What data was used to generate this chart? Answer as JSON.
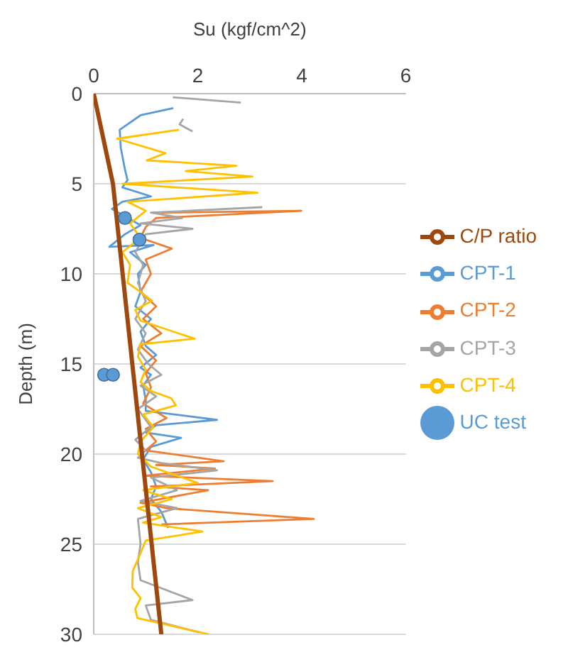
{
  "chart_data": {
    "type": "line",
    "xlabel": "Su (kgf/cm^2)",
    "ylabel": "Depth (m)",
    "xlim": [
      0,
      6
    ],
    "xticks": [
      0,
      2,
      4,
      6
    ],
    "ylim": [
      30,
      0
    ],
    "yticks": [
      0,
      5,
      10,
      15,
      20,
      25,
      30
    ],
    "grid": "y",
    "legend": "right",
    "series": [
      {
        "name": "CPT-1",
        "color": "#5b9bd5",
        "x": [
          1.53,
          0.9,
          0.5,
          0.52,
          0.6,
          0.65,
          0.55,
          1.1,
          0.55,
          0.35,
          0.6,
          0.9,
          0.6,
          0.3,
          1.15,
          0.7,
          1.0,
          0.85,
          0.9,
          0.8,
          1.1,
          0.9,
          1.0,
          1.2,
          0.9,
          1.1,
          0.95,
          1.0,
          1.0,
          2.37,
          1.2,
          1.0,
          1.68,
          1.1,
          0.95,
          1.1,
          1.2,
          1.1,
          1.3,
          1.43
        ],
        "values": [
          0.8,
          1.2,
          2.0,
          3.0,
          4.2,
          4.8,
          5.2,
          5.7,
          6.0,
          6.4,
          6.8,
          7.3,
          7.8,
          8.5,
          8.4,
          8.8,
          9.5,
          10,
          11,
          11.8,
          12.5,
          13.2,
          14,
          14.5,
          15.2,
          15.6,
          16.2,
          17,
          17.6,
          18.1,
          18.4,
          18.8,
          19.1,
          19.6,
          20.3,
          21,
          21.8,
          22.5,
          23.2,
          24.1
        ]
      },
      {
        "name": "CPT-2",
        "color": "#ed7d31",
        "x": [
          1.3,
          3.99,
          1.2,
          1.0,
          0.9,
          1.5,
          1.0,
          1.1,
          0.9,
          1.2,
          0.95,
          1.3,
          0.9,
          1.2,
          1.0,
          1.1,
          0.95,
          1.4,
          1.0,
          1.2,
          1.0,
          2.5,
          1.2,
          2.33,
          1.0,
          3.44,
          1.1,
          2.2,
          0.9,
          1.4,
          4.23,
          1.3
        ],
        "values": [
          6.6,
          6.5,
          6.9,
          7.4,
          8.0,
          8.6,
          9.2,
          10,
          11,
          11.8,
          12.5,
          13.3,
          14,
          14.8,
          15.5,
          16.3,
          17.2,
          18,
          18.6,
          19.3,
          19.8,
          20.4,
          20.6,
          20.8,
          21.2,
          21.5,
          21.8,
          22.0,
          22.7,
          23.0,
          23.6,
          23.9
        ]
      },
      {
        "name": "CPT-3",
        "color": "#a5a5a5",
        "x": [
          1.52,
          2.83,
          null,
          1.72,
          1.65,
          1.9,
          null,
          3.24,
          1.1,
          1.7,
          0.9,
          1.9,
          1.0,
          0.8,
          0.95,
          0.85,
          1.0,
          0.8,
          1.0,
          0.85,
          1.05,
          1.3,
          0.9,
          1.2,
          0.85,
          1.1,
          0.8,
          1.0,
          0.85,
          1.3,
          2.37,
          1.1,
          1.6,
          0.9,
          1.6,
          0.85,
          0.9,
          0.85,
          0.9,
          1.9,
          1.0,
          1.1,
          2.03
        ],
        "values": [
          0.2,
          0.5,
          null,
          1.4,
          1.7,
          2.1,
          null,
          6.3,
          6.6,
          6.9,
          7.2,
          7.5,
          7.8,
          8.8,
          9.5,
          10.5,
          11.5,
          12.5,
          13.3,
          14.2,
          15,
          15.6,
          16.2,
          16.8,
          17.5,
          18.5,
          19.2,
          19.8,
          20.2,
          20.5,
          20.9,
          21.3,
          22,
          22.6,
          23,
          23.6,
          25,
          26,
          27,
          28.1,
          28.4,
          29.2,
          29.9
        ]
      },
      {
        "name": "CPT-4",
        "color": "#ffc000",
        "x": [
          1.64,
          0.45,
          1.38,
          1.02,
          2.74,
          1.77,
          3.05,
          0.56,
          3.15,
          0.65,
          1.0,
          0.7,
          0.9,
          0.55,
          0.7,
          0.65,
          0.9,
          1.12,
          0.8,
          0.9,
          1.94,
          0.9,
          0.85,
          1.0,
          0.9,
          1.1,
          1.49,
          1.58,
          0.95,
          1.15,
          0.9,
          0.85,
          1.1,
          2.0,
          0.95,
          1.5,
          0.85,
          1.3,
          0.95,
          2.09,
          1.0,
          0.9,
          0.75,
          0.74,
          0.9,
          0.8,
          0.84,
          2.22
        ],
        "values": [
          2.0,
          2.5,
          3.3,
          3.7,
          4.0,
          4.3,
          4.6,
          5.0,
          5.5,
          6.0,
          6.5,
          7.2,
          8,
          8.8,
          9.5,
          10.5,
          11,
          11.5,
          12,
          12.6,
          13.6,
          13.9,
          14.6,
          15.3,
          16,
          16.5,
          16.9,
          17.3,
          17.8,
          18.5,
          19.3,
          20,
          20.7,
          21.6,
          22,
          22.5,
          23,
          23.5,
          23.8,
          24.3,
          24.8,
          25.5,
          26.5,
          27.4,
          28,
          28.6,
          29.1,
          30
        ]
      },
      {
        "name": "C/P ratio",
        "color": "#9e480e",
        "x": [
          0,
          0.37,
          1.3
        ],
        "values": [
          0,
          5,
          30
        ]
      },
      {
        "name": "UC test",
        "type": "scatter",
        "marker": "circle",
        "color": "#5b9bd5",
        "x": [
          0.6,
          0.88,
          0.2,
          0.37
        ],
        "values": [
          6.9,
          8.1,
          15.6,
          15.6
        ]
      }
    ]
  }
}
